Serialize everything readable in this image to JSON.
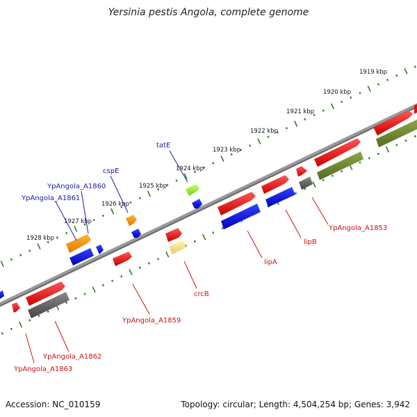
{
  "title": "Yersinia pestis Angola, complete genome",
  "footer": {
    "accession": "Accession: NC_010159",
    "summary": "Topology: circular; Length: 4,504,254 bp; Genes: 3,942"
  },
  "colors": {
    "backbone": "#777777",
    "ticks": "#2e7d1e",
    "label_blue": "#1a1aa6",
    "label_red": "#cc1111",
    "leader_blue": "#1a1aa6",
    "leader_red": "#cc1111"
  },
  "ticks": [
    "1919 kbp",
    "1920 kbp",
    "1921 kbp",
    "1922 kbp",
    "1923 kbp",
    "1924 kbp",
    "1925 kbp",
    "1926 kbp",
    "1927 kbp",
    "1928 kbp"
  ],
  "labels_upper": [
    "tatE",
    "cspE",
    "YpAngola_A1860",
    "YpAngola_A1861"
  ],
  "labels_lower": [
    "YpAngola_A1853",
    "lipB",
    "lipA",
    "crcB",
    "YpAngola_A1859",
    "YpAngola_A1862",
    "YpAngola_A1863"
  ]
}
